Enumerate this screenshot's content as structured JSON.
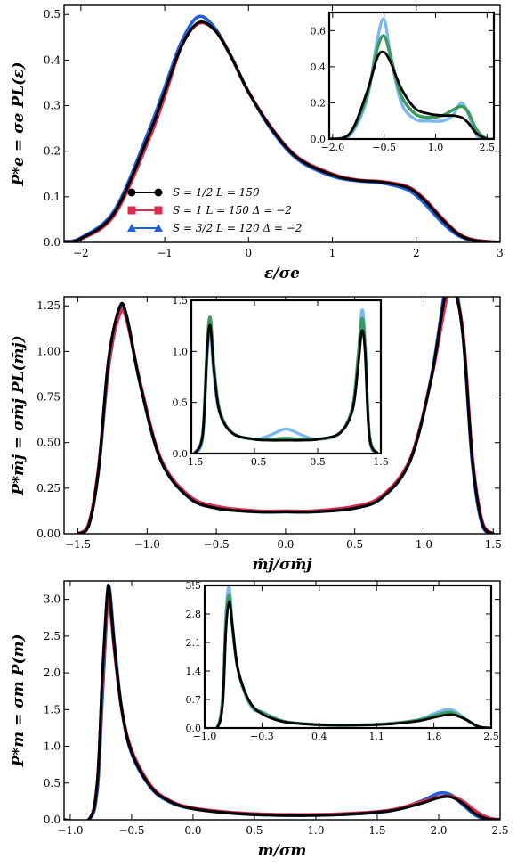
{
  "chart_data": [
    {
      "type": "line",
      "title": "",
      "xlabel": "ε/σe",
      "ylabel": "P*e = σe PL(ε)",
      "xlim": [
        -2.2,
        3.0
      ],
      "ylim": [
        0.0,
        0.52
      ],
      "xticks": [
        "−2",
        "−1",
        "0",
        "1",
        "2",
        "3"
      ],
      "yticks": [
        "0.0",
        "0.1",
        "0.2",
        "0.3",
        "0.4",
        "0.5"
      ],
      "grid": false,
      "legend_position": "lower-left",
      "legend": [
        {
          "color": "#000000",
          "marker": "circle",
          "label": "S = 1/2  L = 150"
        },
        {
          "color": "#e0294f",
          "marker": "square",
          "label": "S = 1     L = 150  Δ = −2"
        },
        {
          "color": "#2060d8",
          "marker": "triangle",
          "label": "S = 3/2  L = 120  Δ = −2"
        }
      ],
      "series": [
        {
          "color": "#2060d8",
          "x": [
            -2.2,
            -2.0,
            -1.6,
            -1.2,
            -1.0,
            -0.8,
            -0.6,
            -0.4,
            -0.2,
            0.0,
            0.3,
            0.6,
            1.0,
            1.3,
            1.6,
            1.9,
            2.1,
            2.3,
            2.5,
            2.7,
            3.0
          ],
          "y": [
            0.002,
            0.01,
            0.07,
            0.24,
            0.34,
            0.44,
            0.495,
            0.47,
            0.405,
            0.33,
            0.24,
            0.18,
            0.145,
            0.135,
            0.13,
            0.115,
            0.085,
            0.045,
            0.015,
            0.004,
            0.0
          ]
        },
        {
          "color": "#e0294f",
          "x": [
            -2.2,
            -2.0,
            -1.6,
            -1.2,
            -1.0,
            -0.8,
            -0.6,
            -0.4,
            -0.2,
            0.0,
            0.3,
            0.6,
            1.0,
            1.3,
            1.6,
            1.9,
            2.1,
            2.3,
            2.5,
            2.7,
            3.0
          ],
          "y": [
            0.001,
            0.007,
            0.06,
            0.22,
            0.32,
            0.43,
            0.48,
            0.465,
            0.405,
            0.33,
            0.245,
            0.185,
            0.15,
            0.137,
            0.133,
            0.122,
            0.095,
            0.055,
            0.02,
            0.005,
            0.0
          ]
        },
        {
          "color": "#000000",
          "x": [
            -2.2,
            -2.0,
            -1.6,
            -1.2,
            -1.0,
            -0.8,
            -0.6,
            -0.4,
            -0.2,
            0.0,
            0.3,
            0.6,
            1.0,
            1.3,
            1.6,
            1.9,
            2.1,
            2.3,
            2.5,
            2.7,
            3.0
          ],
          "y": [
            0.001,
            0.008,
            0.065,
            0.23,
            0.33,
            0.43,
            0.482,
            0.465,
            0.405,
            0.33,
            0.243,
            0.183,
            0.148,
            0.136,
            0.132,
            0.12,
            0.092,
            0.052,
            0.018,
            0.004,
            0.0
          ]
        }
      ],
      "inset": {
        "xlim": [
          -2.1,
          2.7
        ],
        "ylim": [
          0.0,
          0.7
        ],
        "xticks": [
          "−2.0",
          "−0.5",
          "1.0",
          "2.5"
        ],
        "yticks": [
          "0.0",
          "0.2",
          "0.4",
          "0.6"
        ],
        "series": [
          {
            "color": "#7ab8ee",
            "x": [
              -2.1,
              -1.5,
              -1.0,
              -0.7,
              -0.5,
              -0.3,
              0.0,
              0.4,
              0.8,
              1.2,
              1.5,
              1.75,
              1.95,
              2.2,
              2.5,
              2.7
            ],
            "y": [
              0.0,
              0.02,
              0.22,
              0.55,
              0.66,
              0.45,
              0.2,
              0.11,
              0.1,
              0.1,
              0.13,
              0.2,
              0.14,
              0.02,
              0.0,
              0.0
            ]
          },
          {
            "color": "#3a9a5a",
            "x": [
              -2.1,
              -1.5,
              -1.0,
              -0.7,
              -0.5,
              -0.3,
              0.0,
              0.4,
              0.8,
              1.2,
              1.5,
              1.75,
              1.95,
              2.2,
              2.5,
              2.7
            ],
            "y": [
              0.0,
              0.03,
              0.24,
              0.5,
              0.57,
              0.45,
              0.24,
              0.14,
              0.12,
              0.13,
              0.16,
              0.18,
              0.15,
              0.05,
              0.0,
              0.0
            ]
          },
          {
            "color": "#000000",
            "x": [
              -2.1,
              -1.5,
              -1.0,
              -0.7,
              -0.5,
              -0.3,
              0.0,
              0.4,
              0.8,
              1.2,
              1.5,
              1.75,
              1.95,
              2.2,
              2.5,
              2.7
            ],
            "y": [
              0.0,
              0.03,
              0.26,
              0.45,
              0.48,
              0.42,
              0.28,
              0.17,
              0.14,
              0.13,
              0.13,
              0.12,
              0.09,
              0.03,
              0.0,
              0.0
            ]
          }
        ]
      }
    },
    {
      "type": "line",
      "title": "",
      "xlabel": "m̄j/σm̄j",
      "ylabel": "P*m̄j = σm̄j PL(m̄j)",
      "xlim": [
        -1.6,
        1.55
      ],
      "ylim": [
        0.0,
        1.3
      ],
      "xticks": [
        "−1.5",
        "−1.0",
        "−0.5",
        "0.0",
        "0.5",
        "1.0",
        "1.5"
      ],
      "yticks": [
        "0.00",
        "0.25",
        "0.50",
        "0.75",
        "1.00",
        "1.25"
      ],
      "grid": false,
      "series": [
        {
          "color": "#2060d8",
          "x": [
            -1.5,
            -1.42,
            -1.35,
            -1.28,
            -1.2,
            -1.15,
            -1.05,
            -0.9,
            -0.7,
            -0.5,
            -0.2,
            0.0,
            0.2,
            0.5,
            0.7,
            0.9,
            1.05,
            1.15,
            1.2,
            1.28,
            1.35,
            1.42,
            1.5
          ],
          "y": [
            0.0,
            0.05,
            0.35,
            0.9,
            1.22,
            1.2,
            0.82,
            0.4,
            0.2,
            0.14,
            0.12,
            0.12,
            0.12,
            0.14,
            0.2,
            0.4,
            0.85,
            1.33,
            1.44,
            1.1,
            0.38,
            0.05,
            0.0
          ]
        },
        {
          "color": "#e0294f",
          "x": [
            -1.5,
            -1.42,
            -1.35,
            -1.28,
            -1.2,
            -1.15,
            -1.05,
            -0.9,
            -0.7,
            -0.5,
            -0.2,
            0.0,
            0.2,
            0.5,
            0.7,
            0.9,
            1.05,
            1.15,
            1.2,
            1.28,
            1.35,
            1.42,
            1.5
          ],
          "y": [
            0.0,
            0.06,
            0.37,
            0.92,
            1.2,
            1.18,
            0.83,
            0.41,
            0.21,
            0.15,
            0.125,
            0.125,
            0.125,
            0.15,
            0.21,
            0.41,
            0.84,
            1.24,
            1.36,
            1.12,
            0.42,
            0.07,
            0.0
          ]
        },
        {
          "color": "#000000",
          "x": [
            -1.5,
            -1.42,
            -1.35,
            -1.28,
            -1.2,
            -1.15,
            -1.05,
            -0.9,
            -0.7,
            -0.5,
            -0.2,
            0.0,
            0.2,
            0.5,
            0.7,
            0.9,
            1.05,
            1.15,
            1.2,
            1.28,
            1.35,
            1.42,
            1.5
          ],
          "y": [
            0.0,
            0.05,
            0.36,
            0.95,
            1.24,
            1.2,
            0.82,
            0.4,
            0.2,
            0.14,
            0.12,
            0.12,
            0.12,
            0.14,
            0.2,
            0.4,
            0.84,
            1.3,
            1.4,
            1.1,
            0.4,
            0.06,
            0.0
          ]
        }
      ],
      "inset": {
        "xlim": [
          -1.5,
          1.5
        ],
        "ylim": [
          0.0,
          1.5
        ],
        "xticks": [
          "−1.5",
          "−0.5",
          "0.5",
          "1.5"
        ],
        "yticks": [
          "0.0",
          "0.5",
          "1.0",
          "1.5"
        ],
        "series": [
          {
            "color": "#7ab8ee",
            "x": [
              -1.45,
              -1.32,
              -1.25,
              -1.2,
              -1.14,
              -1.05,
              -0.85,
              -0.5,
              -0.25,
              0.0,
              0.25,
              0.5,
              0.85,
              1.05,
              1.14,
              1.2,
              1.25,
              1.32,
              1.45
            ],
            "y": [
              0.0,
              0.15,
              0.95,
              1.2,
              0.75,
              0.4,
              0.2,
              0.14,
              0.18,
              0.24,
              0.18,
              0.14,
              0.2,
              0.45,
              0.9,
              1.4,
              1.1,
              0.15,
              0.0
            ]
          },
          {
            "color": "#3a9a5a",
            "x": [
              -1.45,
              -1.32,
              -1.25,
              -1.2,
              -1.14,
              -1.05,
              -0.85,
              -0.5,
              -0.25,
              0.0,
              0.25,
              0.5,
              0.85,
              1.05,
              1.14,
              1.2,
              1.25,
              1.32,
              1.45
            ],
            "y": [
              0.0,
              0.2,
              1.05,
              1.33,
              0.85,
              0.42,
              0.2,
              0.14,
              0.14,
              0.15,
              0.14,
              0.14,
              0.2,
              0.45,
              0.95,
              1.32,
              1.05,
              0.18,
              0.0
            ]
          },
          {
            "color": "#000000",
            "x": [
              -1.45,
              -1.32,
              -1.25,
              -1.2,
              -1.14,
              -1.05,
              -0.85,
              -0.5,
              -0.25,
              0.0,
              0.25,
              0.5,
              0.85,
              1.05,
              1.14,
              1.2,
              1.25,
              1.32,
              1.45
            ],
            "y": [
              0.0,
              0.18,
              1.0,
              1.25,
              0.8,
              0.4,
              0.2,
              0.14,
              0.13,
              0.13,
              0.13,
              0.14,
              0.2,
              0.42,
              0.85,
              1.2,
              1.0,
              0.16,
              0.0
            ]
          }
        ]
      }
    },
    {
      "type": "line",
      "title": "",
      "xlabel": "m/σm",
      "ylabel": "P*m = σm P(m)",
      "xlim": [
        -1.05,
        2.5
      ],
      "ylim": [
        0.0,
        3.25
      ],
      "xticks": [
        "−1.0",
        "−0.5",
        "0.0",
        "0.5",
        "1.0",
        "1.5",
        "2.0",
        "2.5"
      ],
      "yticks": [
        "0.0",
        "0.5",
        "1.0",
        "1.5",
        "2.0",
        "2.5",
        "3.0"
      ],
      "grid": false,
      "series": [
        {
          "color": "#2060d8",
          "x": [
            -1.05,
            -0.85,
            -0.78,
            -0.74,
            -0.7,
            -0.68,
            -0.64,
            -0.58,
            -0.5,
            -0.35,
            -0.2,
            0.0,
            0.4,
            0.8,
            1.2,
            1.6,
            1.85,
            2.0,
            2.1,
            2.2,
            2.3,
            2.4,
            2.5
          ],
          "y": [
            0.0,
            0.0,
            0.4,
            1.6,
            2.9,
            3.15,
            2.4,
            1.5,
            0.9,
            0.45,
            0.25,
            0.15,
            0.08,
            0.06,
            0.07,
            0.12,
            0.25,
            0.36,
            0.34,
            0.2,
            0.06,
            0.0,
            0.0
          ]
        },
        {
          "color": "#e0294f",
          "x": [
            -1.05,
            -0.85,
            -0.78,
            -0.74,
            -0.7,
            -0.68,
            -0.64,
            -0.58,
            -0.5,
            -0.35,
            -0.2,
            0.0,
            0.4,
            0.8,
            1.2,
            1.6,
            1.85,
            2.0,
            2.1,
            2.2,
            2.3,
            2.4,
            2.5
          ],
          "y": [
            0.0,
            0.0,
            0.5,
            1.8,
            2.95,
            3.0,
            2.3,
            1.5,
            0.95,
            0.48,
            0.27,
            0.16,
            0.09,
            0.07,
            0.08,
            0.13,
            0.24,
            0.31,
            0.32,
            0.25,
            0.12,
            0.03,
            0.0
          ]
        },
        {
          "color": "#000000",
          "x": [
            -1.05,
            -0.85,
            -0.78,
            -0.74,
            -0.7,
            -0.68,
            -0.64,
            -0.58,
            -0.5,
            -0.35,
            -0.2,
            0.0,
            0.4,
            0.8,
            1.2,
            1.6,
            1.85,
            2.0,
            2.1,
            2.2,
            2.3,
            2.4,
            2.5
          ],
          "y": [
            0.0,
            0.0,
            0.5,
            1.9,
            3.05,
            3.1,
            2.35,
            1.5,
            0.92,
            0.46,
            0.26,
            0.15,
            0.08,
            0.06,
            0.07,
            0.12,
            0.22,
            0.3,
            0.31,
            0.22,
            0.08,
            0.01,
            0.0
          ]
        }
      ],
      "inset": {
        "xlim": [
          -1.0,
          2.5
        ],
        "ylim": [
          0.0,
          3.5
        ],
        "xticks": [
          "−1.0",
          "−0.3",
          "0.4",
          "1.1",
          "1.8",
          "2.5"
        ],
        "yticks": [
          "0.0",
          "0.7",
          "1.4",
          "2.1",
          "2.8",
          "3.5"
        ],
        "series": [
          {
            "color": "#7ab8ee",
            "x": [
              -1.0,
              -0.85,
              -0.78,
              -0.74,
              -0.7,
              -0.66,
              -0.6,
              -0.5,
              -0.4,
              -0.3,
              -0.2,
              0.0,
              0.4,
              0.8,
              1.2,
              1.6,
              1.8,
              1.95,
              2.05,
              2.2,
              2.35,
              2.5
            ],
            "y": [
              0.0,
              0.0,
              0.8,
              2.8,
              3.45,
              2.5,
              1.5,
              0.8,
              0.45,
              0.4,
              0.3,
              0.15,
              0.08,
              0.07,
              0.1,
              0.2,
              0.35,
              0.45,
              0.42,
              0.2,
              0.02,
              0.0
            ]
          },
          {
            "color": "#3a9a5a",
            "x": [
              -1.0,
              -0.85,
              -0.78,
              -0.74,
              -0.7,
              -0.66,
              -0.6,
              -0.5,
              -0.4,
              -0.3,
              -0.2,
              0.0,
              0.4,
              0.8,
              1.2,
              1.6,
              1.8,
              1.95,
              2.05,
              2.2,
              2.35,
              2.5
            ],
            "y": [
              0.0,
              0.0,
              0.7,
              2.6,
              3.25,
              2.45,
              1.5,
              0.82,
              0.5,
              0.38,
              0.28,
              0.15,
              0.08,
              0.07,
              0.1,
              0.19,
              0.3,
              0.38,
              0.36,
              0.2,
              0.03,
              0.0
            ]
          },
          {
            "color": "#000000",
            "x": [
              -1.0,
              -0.85,
              -0.78,
              -0.74,
              -0.7,
              -0.66,
              -0.6,
              -0.5,
              -0.4,
              -0.3,
              -0.2,
              0.0,
              0.4,
              0.8,
              1.2,
              1.6,
              1.8,
              1.95,
              2.05,
              2.2,
              2.35,
              2.5
            ],
            "y": [
              0.0,
              0.0,
              0.6,
              2.4,
              3.1,
              2.5,
              1.5,
              0.85,
              0.5,
              0.35,
              0.25,
              0.14,
              0.08,
              0.07,
              0.09,
              0.17,
              0.26,
              0.32,
              0.32,
              0.2,
              0.03,
              0.0
            ]
          }
        ]
      }
    }
  ]
}
